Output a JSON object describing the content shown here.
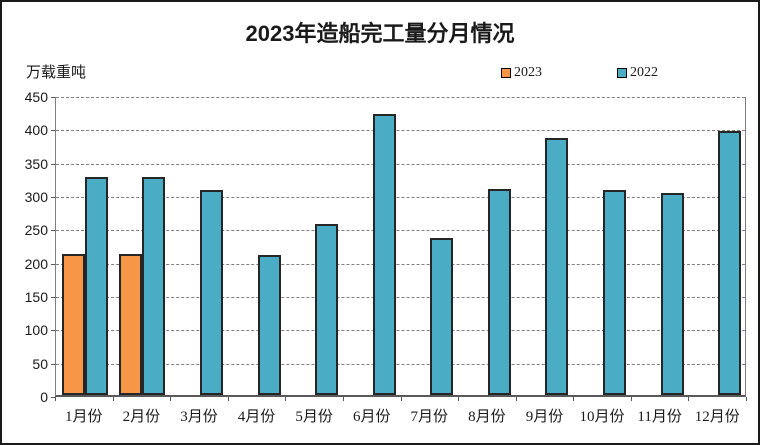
{
  "title": "2023年造船完工量分月情况",
  "y_axis_unit": "万载重吨",
  "legend": {
    "items": [
      {
        "label": "2023",
        "color": "#F79646"
      },
      {
        "label": "2022",
        "color": "#4BACC6"
      }
    ]
  },
  "chart_data": {
    "type": "bar",
    "title": "2023年造船完工量分月情况",
    "ylabel": "万载重吨",
    "categories": [
      "1月份",
      "2月份",
      "3月份",
      "4月份",
      "5月份",
      "6月份",
      "7月份",
      "8月份",
      "9月份",
      "10月份",
      "11月份",
      "12月份"
    ],
    "series": [
      {
        "name": "2023",
        "color": "#F79646",
        "values": [
          211,
          211,
          null,
          null,
          null,
          null,
          null,
          null,
          null,
          null,
          null,
          null
        ]
      },
      {
        "name": "2022",
        "color": "#4BACC6",
        "values": [
          327,
          327,
          308,
          210,
          257,
          421,
          235,
          309,
          386,
          307,
          303,
          396
        ]
      }
    ],
    "ylim": [
      0,
      450
    ],
    "yticks": [
      0,
      50,
      100,
      150,
      200,
      250,
      300,
      350,
      400,
      450
    ],
    "grid": "horizontal-dashed",
    "legend_position": "top-right",
    "bar_border_color": "#262626",
    "axis_color": "#595959"
  }
}
